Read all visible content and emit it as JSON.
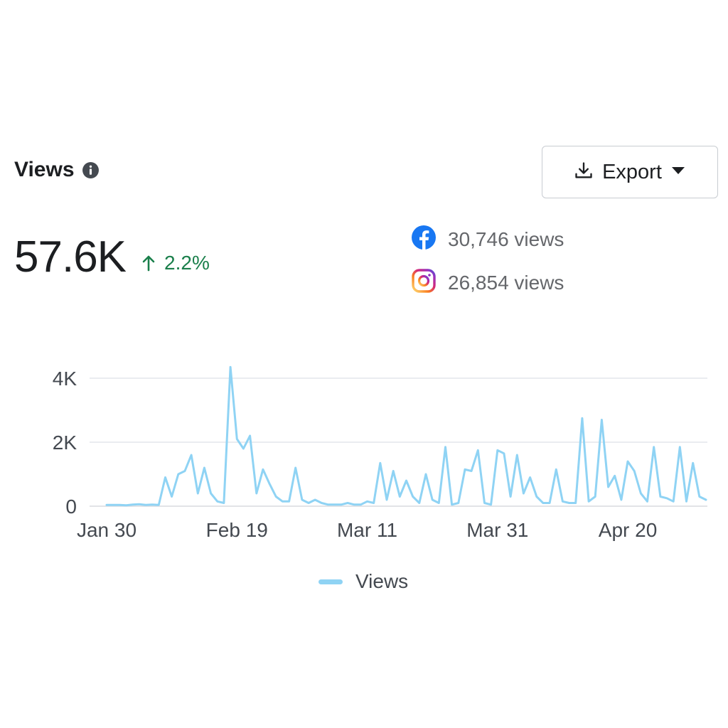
{
  "header": {
    "title": "Views",
    "export_label": "Export"
  },
  "summary": {
    "total": "57.6K",
    "change": "2.2%"
  },
  "platforms": [
    {
      "name": "facebook-icon",
      "value": "30,746 views"
    },
    {
      "name": "instagram-icon",
      "value": "26,854 views"
    }
  ],
  "colors": {
    "line": "#8fd3f4",
    "positive": "#1a7f4b",
    "facebook": "#1877f2"
  },
  "chart_data": {
    "type": "line",
    "title": "",
    "xlabel": "",
    "ylabel": "",
    "x_start": "Jan 30",
    "x_ticks": [
      {
        "label": "Jan 30",
        "index": 0
      },
      {
        "label": "Feb 19",
        "index": 20
      },
      {
        "label": "Mar 11",
        "index": 40
      },
      {
        "label": "Mar 31",
        "index": 60
      },
      {
        "label": "Apr 20",
        "index": 80
      }
    ],
    "y_ticks": [
      {
        "label": "0",
        "value": 0
      },
      {
        "label": "2K",
        "value": 2000
      },
      {
        "label": "4K",
        "value": 4000
      }
    ],
    "ylim": [
      0,
      4000
    ],
    "grid": true,
    "legend_position": "bottom",
    "series": [
      {
        "name": "Views",
        "values": [
          40,
          40,
          40,
          30,
          50,
          60,
          40,
          50,
          40,
          900,
          300,
          1000,
          1100,
          1600,
          400,
          1200,
          400,
          150,
          100,
          4350,
          2100,
          1800,
          2200,
          400,
          1150,
          700,
          300,
          150,
          150,
          1200,
          200,
          100,
          200,
          100,
          50,
          50,
          50,
          100,
          50,
          50,
          150,
          100,
          1350,
          200,
          1100,
          300,
          800,
          300,
          100,
          1000,
          200,
          100,
          1850,
          50,
          100,
          1150,
          1100,
          1750,
          100,
          50,
          1750,
          1650,
          300,
          1600,
          400,
          900,
          300,
          100,
          100,
          1150,
          150,
          100,
          100,
          2750,
          150,
          300,
          2700,
          600,
          950,
          200,
          1400,
          1100,
          400,
          150,
          1850,
          300,
          250,
          150,
          1850,
          150,
          1350,
          300,
          200
        ]
      }
    ]
  }
}
